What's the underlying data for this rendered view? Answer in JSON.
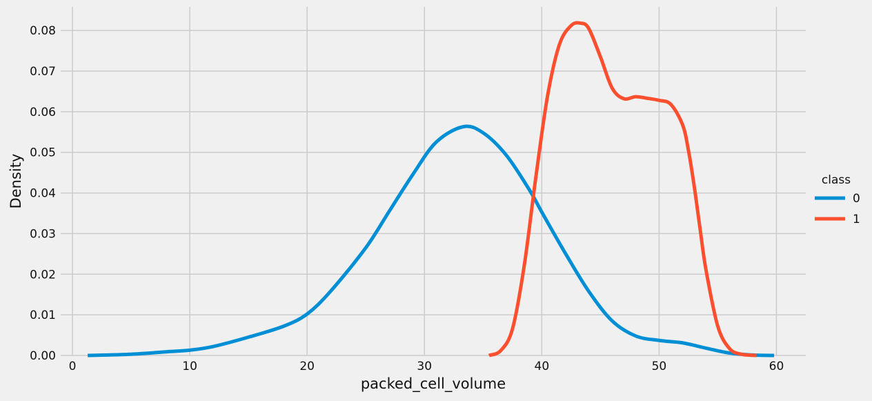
{
  "chart_data": {
    "type": "line",
    "xlabel": "packed_cell_volume",
    "ylabel": "Density",
    "xlim": [
      -1,
      62.5
    ],
    "ylim": [
      0,
      0.0858
    ],
    "x_ticks": [
      0,
      10,
      20,
      30,
      40,
      50,
      60
    ],
    "y_ticks": [
      0.0,
      0.01,
      0.02,
      0.03,
      0.04,
      0.05,
      0.06,
      0.07,
      0.08
    ],
    "grid": true,
    "legend_position": "right",
    "legend_title": "class",
    "series": [
      {
        "name": "0",
        "color": "#008fd5",
        "x": [
          1.3,
          5,
          8,
          10,
          12,
          15,
          18,
          20,
          22,
          25,
          27,
          29,
          31,
          33.3,
          35,
          37,
          39,
          40,
          42,
          44,
          46,
          48,
          50,
          52,
          54,
          56,
          58,
          59.8
        ],
        "y": [
          0.0,
          0.0003,
          0.0009,
          0.0013,
          0.0022,
          0.0045,
          0.0072,
          0.0102,
          0.0158,
          0.0265,
          0.0355,
          0.0445,
          0.0525,
          0.0563,
          0.0548,
          0.0492,
          0.0405,
          0.0353,
          0.0252,
          0.0158,
          0.0085,
          0.0048,
          0.0037,
          0.0031,
          0.0018,
          0.0006,
          0.0001,
          0.0
        ]
      },
      {
        "name": "1",
        "color": "#fc4f30",
        "x": [
          35.5,
          36.5,
          37.5,
          38.5,
          39.5,
          40.5,
          41.5,
          42.5,
          43.3,
          44,
          45,
          46,
          47,
          48,
          49,
          50,
          51,
          52,
          52.5,
          53,
          53.5,
          54,
          55,
          56,
          57,
          58.3
        ],
        "y": [
          0.0,
          0.0012,
          0.0065,
          0.022,
          0.044,
          0.064,
          0.0765,
          0.0812,
          0.0818,
          0.0805,
          0.0735,
          0.0658,
          0.0632,
          0.0637,
          0.0633,
          0.0628,
          0.0618,
          0.0568,
          0.0505,
          0.0415,
          0.031,
          0.021,
          0.0072,
          0.0017,
          0.0003,
          0.0
        ]
      }
    ]
  }
}
